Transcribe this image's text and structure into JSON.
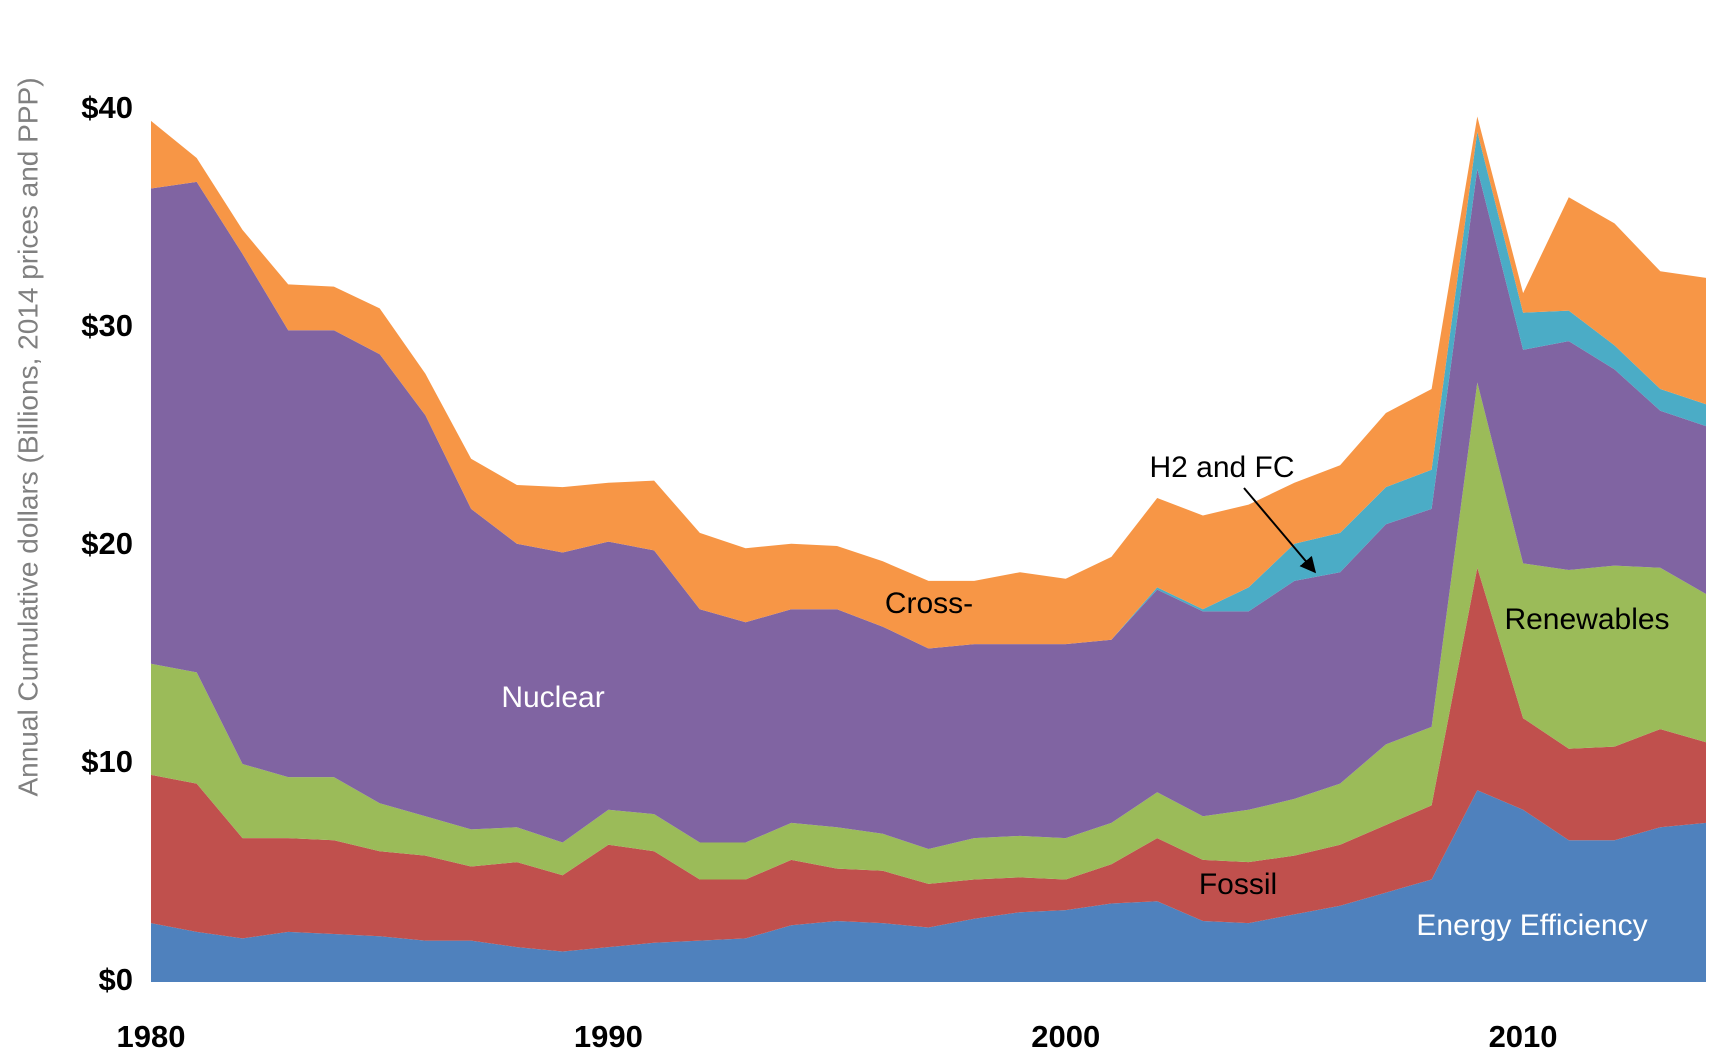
{
  "chart_data": {
    "type": "stacked_area",
    "y_label": "Annual Cumulative dollars (Billions, 2014 prices and PPP)",
    "x": [
      1980,
      1981,
      1982,
      1983,
      1984,
      1985,
      1986,
      1987,
      1988,
      1989,
      1990,
      1991,
      1992,
      1993,
      1994,
      1995,
      1996,
      1997,
      1998,
      1999,
      2000,
      2001,
      2002,
      2003,
      2004,
      2005,
      2006,
      2007,
      2008,
      2009,
      2010,
      2011,
      2012,
      2013,
      2014
    ],
    "xlim": [
      1980,
      2014
    ],
    "xticks": [
      1980,
      1990,
      2000,
      2010
    ],
    "ylim": [
      0,
      40
    ],
    "yticks": [
      {
        "value": 0,
        "label": "$0"
      },
      {
        "value": 10,
        "label": "$10"
      },
      {
        "value": 20,
        "label": "$20"
      },
      {
        "value": 30,
        "label": "$30"
      },
      {
        "value": 40,
        "label": "$40"
      }
    ],
    "grid": false,
    "series": [
      {
        "name": "Energy Efficiency",
        "color": "#4f81bd",
        "values": [
          2.7,
          2.3,
          2.0,
          2.3,
          2.2,
          2.1,
          1.9,
          1.9,
          1.6,
          1.4,
          1.6,
          1.8,
          1.9,
          2.0,
          2.6,
          2.8,
          2.7,
          2.5,
          2.9,
          3.2,
          3.3,
          3.6,
          3.7,
          2.8,
          2.7,
          3.1,
          3.5,
          4.1,
          4.7,
          8.8,
          7.9,
          6.5,
          6.5,
          7.1,
          7.3
        ]
      },
      {
        "name": "Fossil",
        "color": "#c0504d",
        "values": [
          6.8,
          6.8,
          4.6,
          4.3,
          4.3,
          3.9,
          3.9,
          3.4,
          3.9,
          3.5,
          4.7,
          4.2,
          2.8,
          2.7,
          3.0,
          2.4,
          2.4,
          2.0,
          1.8,
          1.6,
          1.4,
          1.8,
          2.9,
          2.8,
          2.8,
          2.7,
          2.8,
          3.1,
          3.4,
          10.2,
          4.2,
          4.2,
          4.3,
          4.5,
          3.7
        ]
      },
      {
        "name": "Renewables",
        "color": "#9bbb59",
        "values": [
          5.1,
          5.1,
          3.4,
          2.8,
          2.9,
          2.2,
          1.8,
          1.7,
          1.6,
          1.5,
          1.6,
          1.7,
          1.7,
          1.7,
          1.7,
          1.9,
          1.7,
          1.6,
          1.9,
          1.9,
          1.9,
          1.9,
          2.1,
          2.0,
          2.4,
          2.6,
          2.8,
          3.7,
          3.6,
          8.5,
          7.1,
          8.2,
          8.3,
          7.4,
          6.8
        ]
      },
      {
        "name": "Nuclear",
        "color": "#8064a2",
        "values": [
          21.8,
          22.5,
          23.4,
          20.5,
          20.5,
          20.6,
          18.4,
          14.7,
          13.0,
          13.3,
          12.3,
          12.1,
          10.7,
          10.1,
          9.8,
          10.0,
          9.5,
          9.2,
          8.9,
          8.8,
          8.9,
          8.4,
          9.3,
          9.4,
          9.1,
          10.0,
          9.7,
          10.1,
          10.0,
          9.8,
          9.8,
          10.5,
          9.0,
          7.2,
          7.7
        ]
      },
      {
        "name": "H2 and FC",
        "color": "#4bacc6",
        "values": [
          0,
          0,
          0,
          0,
          0,
          0,
          0,
          0,
          0,
          0,
          0,
          0,
          0,
          0,
          0,
          0,
          0,
          0,
          0,
          0,
          0,
          0,
          0.1,
          0.1,
          1.1,
          1.7,
          1.8,
          1.7,
          1.8,
          1.7,
          1.7,
          1.4,
          1.1,
          1.0,
          1.0
        ]
      },
      {
        "name": "Cross-",
        "color": "#f79646",
        "values": [
          3.1,
          1.1,
          1.1,
          2.1,
          2.0,
          2.1,
          1.9,
          2.3,
          2.7,
          3.0,
          2.7,
          3.2,
          3.5,
          3.4,
          3.0,
          2.9,
          3.0,
          3.1,
          2.9,
          3.3,
          3.0,
          3.8,
          4.1,
          4.3,
          3.8,
          2.8,
          3.1,
          3.4,
          3.7,
          0.7,
          0.9,
          5.2,
          5.6,
          5.4,
          5.8
        ]
      }
    ]
  }
}
